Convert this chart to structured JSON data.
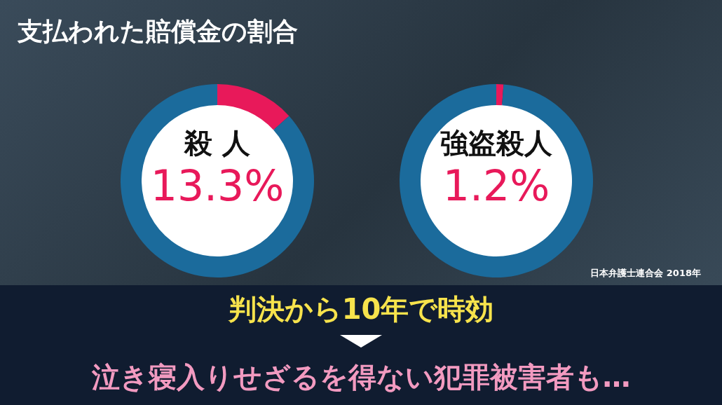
{
  "chart_data": [
    {
      "type": "other",
      "title": "支払われた賠償金の割合"
    },
    {
      "type": "donut",
      "title": "殺 人",
      "categories": [
        null,
        null
      ],
      "values": [
        13.3,
        86.7
      ],
      "colors": [
        "#e8195a",
        "#1b6b9c"
      ],
      "annotations": [
        "13.3%"
      ]
    },
    {
      "type": "donut",
      "title": "強盗殺人",
      "categories": [
        null,
        null
      ],
      "values": [
        1.2,
        98.8
      ],
      "colors": [
        "#e8195a",
        "#1b6b9c"
      ],
      "annotations": [
        "1.2%"
      ]
    },
    {
      "type": "other",
      "annotations": [
        "日本弁護士連合会  2018年",
        "判決から10年で時効",
        "泣き寝入りせざるを得ない犯罪被害者も…"
      ]
    }
  ]
}
